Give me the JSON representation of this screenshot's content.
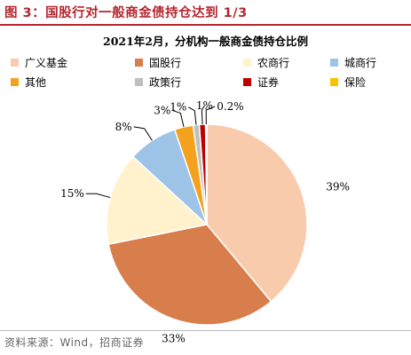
{
  "figure": {
    "label": "图 3：国股行对一般商金债持仓达到 1/3"
  },
  "source": "资料来源：Wind，招商证券",
  "chart_data": {
    "type": "pie",
    "title": "2021年2月，分机构一般商金债持仓比例",
    "legend_position": "top",
    "categories": [
      "广义基金",
      "国股行",
      "农商行",
      "城商行",
      "其他",
      "政策行",
      "证券",
      "保险"
    ],
    "values": [
      39,
      33,
      15,
      8,
      3,
      1,
      1,
      0.2
    ],
    "data_labels": [
      "39%",
      "33%",
      "15%",
      "8%",
      "3%",
      "1%",
      "1%",
      "0.2%"
    ],
    "colors": [
      "#f8cbad",
      "#d87d4c",
      "#fff2cc",
      "#9dc3e6",
      "#f4a21e",
      "#bfbfbf",
      "#c00000",
      "#ffc000"
    ]
  }
}
